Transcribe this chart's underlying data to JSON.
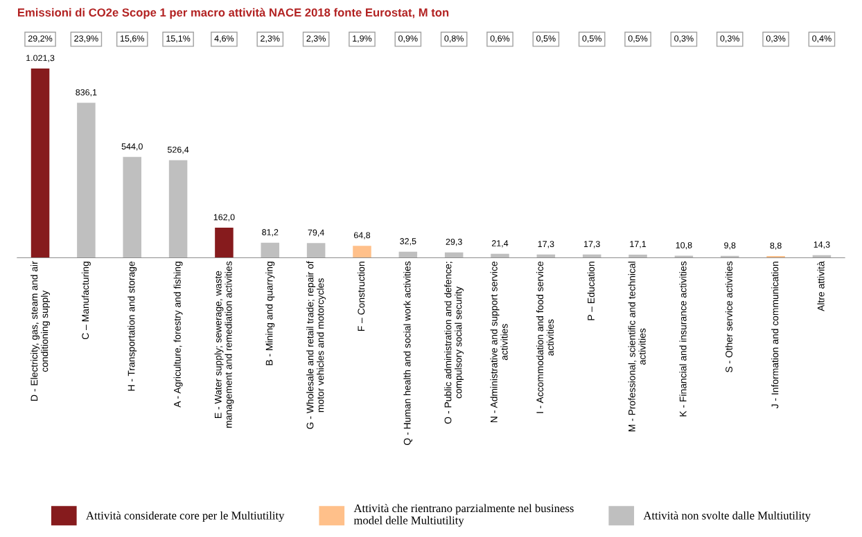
{
  "chart_data": {
    "type": "bar",
    "title": "Emissioni di CO2e Scope 1 per macro attività NACE 2018 fonte Eurostat, M ton",
    "categories": [
      "D - Electricity, gas, steam and air\nconditioning supply",
      "C – Manufacturing",
      "H - Transportation and storage",
      "A - Agriculture, forestry and fishing",
      "E - Water supply; sewerage, waste\nmanagement and remediation activities",
      "B - Mining and quarrying",
      "G - Wholesale and retail trade; repair of\nmotor vehicles and motorcycles",
      "F – Construction",
      "Q - Human health and social work activities",
      "O - Public administration and defence;\ncompulsory social security",
      "N - Administrative and support service\nactivities",
      "I - Accommodation and food service\nactivities",
      "P – Education",
      "M - Professional, scientific and technical\nactivities",
      "K - Financial and insurance activities",
      "S - Other service activities",
      "J - Information and communication",
      "Altre attività"
    ],
    "series": [
      {
        "name": "Attività considerate core per le Multiutility",
        "color": "#861b1d",
        "values": [
          1021.3,
          null,
          null,
          null,
          162.0,
          null,
          null,
          null,
          null,
          null,
          null,
          null,
          null,
          null,
          null,
          null,
          null,
          null
        ],
        "value_labels": [
          "1.021,3",
          null,
          null,
          null,
          "162,0",
          null,
          null,
          null,
          null,
          null,
          null,
          null,
          null,
          null,
          null,
          null,
          null,
          null
        ]
      },
      {
        "name": "Attività che rientrano parzialmente nel business\nmodel delle Multiutility",
        "color": "#ffc08a",
        "values": [
          null,
          null,
          null,
          null,
          null,
          null,
          null,
          64.8,
          null,
          null,
          null,
          null,
          null,
          null,
          null,
          null,
          8.8,
          null
        ],
        "value_labels": [
          null,
          null,
          null,
          null,
          null,
          null,
          null,
          "64,8",
          null,
          null,
          null,
          null,
          null,
          null,
          null,
          null,
          "8,8",
          null
        ]
      },
      {
        "name": "Attività non svolte dalle Multiutility",
        "color": "#bfbfbf",
        "values": [
          null,
          836.1,
          544.0,
          526.4,
          null,
          81.2,
          79.4,
          null,
          32.5,
          29.3,
          21.4,
          17.3,
          17.3,
          17.1,
          10.8,
          9.8,
          null,
          14.3
        ],
        "value_labels": [
          null,
          "836,1",
          "544,0",
          "526,4",
          null,
          "81,2",
          "79,4",
          null,
          "32,5",
          "29,3",
          "21,4",
          "17,3",
          "17,3",
          "17,1",
          "10,8",
          "9,8",
          null,
          "14,3"
        ]
      }
    ],
    "annotations": [
      "29,2%",
      "23,9%",
      "15,6%",
      "15,1%",
      "4,6%",
      "2,3%",
      "2,3%",
      "1,9%",
      "0,9%",
      "0,8%",
      "0,6%",
      "0,5%",
      "0,5%",
      "0,5%",
      "0,3%",
      "0,3%",
      "0,3%",
      "0,4%"
    ],
    "tick_labels": "x",
    "grid": false,
    "legend": "bottom"
  }
}
